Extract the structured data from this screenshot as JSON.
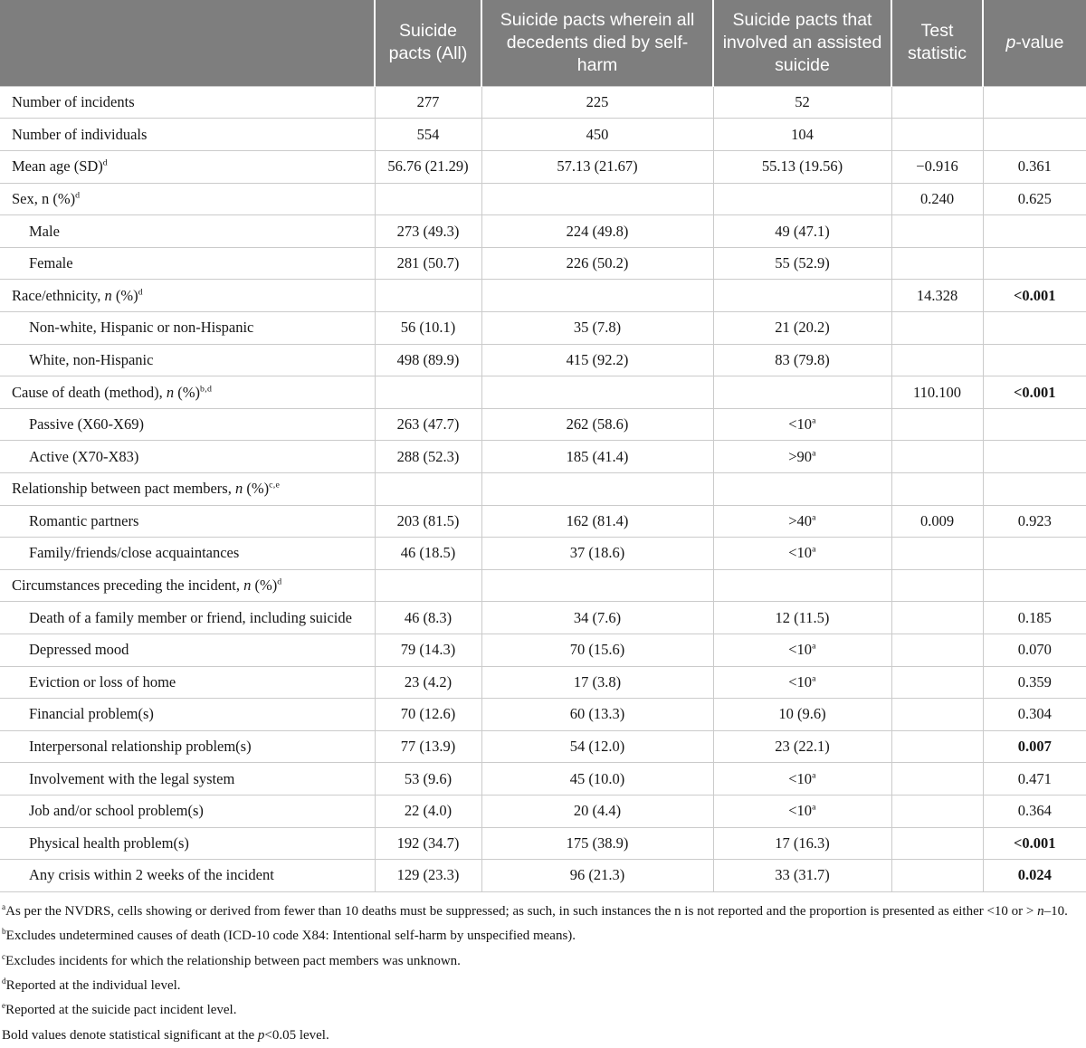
{
  "colors": {
    "header_bg": "#7e7e7e",
    "header_text": "#ffffff",
    "body_border": "#cbcbcb",
    "body_text": "#161616"
  },
  "table": {
    "columns": [
      {
        "label": ""
      },
      {
        "label": "Suicide pacts (All)"
      },
      {
        "label": "Suicide pacts wherein all decedents died by self-harm"
      },
      {
        "label": "Suicide pacts that involved an assisted suicide"
      },
      {
        "label": "Test statistic"
      },
      {
        "label": "[i]p[/i]-value"
      }
    ],
    "rows": [
      {
        "label": "Number of incidents",
        "indent": false,
        "cells": [
          "277",
          "225",
          "52",
          "",
          ""
        ]
      },
      {
        "label": "Number of individuals",
        "indent": false,
        "cells": [
          "554",
          "450",
          "104",
          "",
          ""
        ]
      },
      {
        "label": "Mean age (SD)[sup]d[/sup]",
        "indent": false,
        "cells": [
          "56.76 (21.29)",
          "57.13 (21.67)",
          "55.13 (19.56)",
          "−0.916",
          "0.361"
        ]
      },
      {
        "label": "Sex, n (%)[sup]d[/sup]",
        "indent": false,
        "cells": [
          "",
          "",
          "",
          "0.240",
          "0.625"
        ]
      },
      {
        "label": "Male",
        "indent": true,
        "cells": [
          "273 (49.3)",
          "224 (49.8)",
          "49 (47.1)",
          "",
          ""
        ]
      },
      {
        "label": "Female",
        "indent": true,
        "cells": [
          "281 (50.7)",
          "226 (50.2)",
          "55 (52.9)",
          "",
          ""
        ]
      },
      {
        "label": "Race/ethnicity, [i]n[/i] (%)[sup]d[/sup]",
        "indent": false,
        "cells": [
          "",
          "",
          "",
          "14.328",
          "[b]<0.001[/b]"
        ]
      },
      {
        "label": "Non-white, Hispanic or non-Hispanic",
        "indent": true,
        "cells": [
          "56 (10.1)",
          "35 (7.8)",
          "21 (20.2)",
          "",
          ""
        ]
      },
      {
        "label": "White, non-Hispanic",
        "indent": true,
        "cells": [
          "498 (89.9)",
          "415 (92.2)",
          "83 (79.8)",
          "",
          ""
        ]
      },
      {
        "label": "Cause of death (method), [i]n[/i] (%)[sup]b,d[/sup]",
        "indent": false,
        "cells": [
          "",
          "",
          "",
          "110.100",
          "[b]<0.001[/b]"
        ]
      },
      {
        "label": "Passive (X60-X69)",
        "indent": true,
        "cells": [
          "263 (47.7)",
          "262 (58.6)",
          "<10[sup]a[/sup]",
          "",
          ""
        ]
      },
      {
        "label": "Active (X70-X83)",
        "indent": true,
        "cells": [
          "288 (52.3)",
          "185 (41.4)",
          ">90[sup]a[/sup]",
          "",
          ""
        ]
      },
      {
        "label": "Relationship between pact members, [i]n[/i] (%)[sup]c,e[/sup]",
        "indent": false,
        "cells": [
          "",
          "",
          "",
          "",
          ""
        ]
      },
      {
        "label": "Romantic partners",
        "indent": true,
        "cells": [
          "203 (81.5)",
          "162 (81.4)",
          ">40[sup]a[/sup]",
          "0.009",
          "0.923"
        ]
      },
      {
        "label": "Family/friends/close acquaintances",
        "indent": true,
        "cells": [
          "46 (18.5)",
          "37 (18.6)",
          "<10[sup]a[/sup]",
          "",
          ""
        ]
      },
      {
        "label": "Circumstances preceding the incident, [i]n[/i] (%)[sup]d[/sup]",
        "indent": false,
        "cells": [
          "",
          "",
          "",
          "",
          ""
        ]
      },
      {
        "label": "Death of a family member or friend, including suicide",
        "indent": true,
        "cells": [
          "46 (8.3)",
          "34 (7.6)",
          "12 (11.5)",
          "",
          "0.185"
        ]
      },
      {
        "label": "Depressed mood",
        "indent": true,
        "cells": [
          "79 (14.3)",
          "70 (15.6)",
          "<10[sup]a[/sup]",
          "",
          "0.070"
        ]
      },
      {
        "label": "Eviction or loss of home",
        "indent": true,
        "cells": [
          "23 (4.2)",
          "17 (3.8)",
          "<10[sup]a[/sup]",
          "",
          "0.359"
        ]
      },
      {
        "label": "Financial problem(s)",
        "indent": true,
        "cells": [
          "70 (12.6)",
          "60 (13.3)",
          "10 (9.6)",
          "",
          "0.304"
        ]
      },
      {
        "label": "Interpersonal relationship problem(s)",
        "indent": true,
        "cells": [
          "77 (13.9)",
          "54 (12.0)",
          "23 (22.1)",
          "",
          "[b]0.007[/b]"
        ]
      },
      {
        "label": "Involvement with the legal system",
        "indent": true,
        "cells": [
          "53 (9.6)",
          "45 (10.0)",
          "<10[sup]a[/sup]",
          "",
          "0.471"
        ]
      },
      {
        "label": "Job and/or school problem(s)",
        "indent": true,
        "cells": [
          "22 (4.0)",
          "20 (4.4)",
          "<10[sup]a[/sup]",
          "",
          "0.364"
        ]
      },
      {
        "label": "Physical health problem(s)",
        "indent": true,
        "cells": [
          "192 (34.7)",
          "175 (38.9)",
          "17 (16.3)",
          "",
          "[b]<0.001[/b]"
        ]
      },
      {
        "label": "Any crisis within 2 weeks of the incident",
        "indent": true,
        "cells": [
          "129 (23.3)",
          "96 (21.3)",
          "33 (31.7)",
          "",
          "[b]0.024[/b]"
        ]
      }
    ],
    "footnotes": [
      "[sup]a[/sup]As per the NVDRS, cells showing or derived from fewer than 10 deaths must be suppressed; as such, in such instances the n is not reported and the proportion is presented as either <10 or > [i]n[/i]–10.",
      "[sup]b[/sup]Excludes undetermined causes of death (ICD-10 code X84: Intentional self-harm by unspecified means).",
      "[sup]c[/sup]Excludes incidents for which the relationship between pact members was unknown.",
      "[sup]d[/sup]Reported at the individual level.",
      "[sup]e[/sup]Reported at the suicide pact incident level.",
      "Bold values denote statistical significant at the [i]p[/i]<0.05 level."
    ]
  }
}
